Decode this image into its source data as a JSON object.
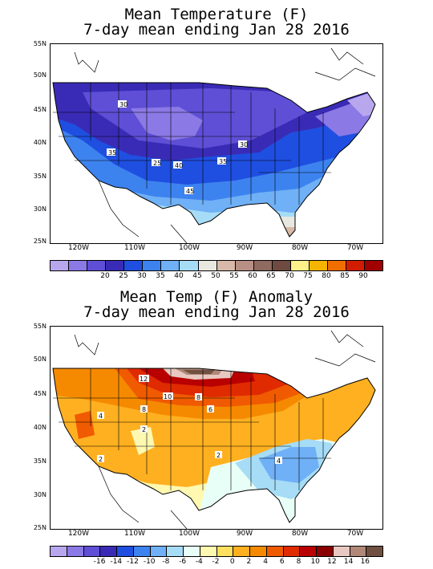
{
  "top": {
    "title_line1": "Mean Temperature (F)",
    "title_line2": "7-day mean ending Jan 28 2016",
    "lat_labels": [
      "55N",
      "50N",
      "45N",
      "40N",
      "35N",
      "30N",
      "25N"
    ],
    "lon_labels": [
      "120W",
      "110W",
      "100W",
      "90W",
      "80W",
      "70W"
    ],
    "contour_labels": [
      "30",
      "35",
      "25",
      "40",
      "30",
      "35",
      "45"
    ],
    "colorbar": {
      "colors": [
        "#b9a7ee",
        "#8b79e6",
        "#5f4fd6",
        "#3a2bb6",
        "#1f4fe0",
        "#3d83ef",
        "#6fb0f6",
        "#a6dcf6",
        "#e8e8e0",
        "#d8b8a8",
        "#b88f85",
        "#8e6a60",
        "#6e4a40",
        "#fff08a",
        "#f5b400",
        "#f06e00",
        "#d21c00",
        "#a00000"
      ],
      "labels": [
        "20",
        "25",
        "30",
        "35",
        "40",
        "45",
        "50",
        "55",
        "60",
        "65",
        "70",
        "75",
        "80",
        "85",
        "90"
      ]
    }
  },
  "bottom": {
    "title_line1": "Mean Temp (F) Anomaly",
    "title_line2": "7-day mean ending Jan 28 2016",
    "lat_labels": [
      "55N",
      "50N",
      "45N",
      "40N",
      "35N",
      "30N",
      "25N"
    ],
    "lon_labels": [
      "120W",
      "110W",
      "100W",
      "90W",
      "80W",
      "70W"
    ],
    "contour_labels": [
      "12",
      "10",
      "8",
      "6",
      "8",
      "4",
      "2",
      "2",
      "2",
      "4"
    ],
    "colorbar": {
      "colors": [
        "#b9a7ee",
        "#8b79e6",
        "#5f4fd6",
        "#3a2bb6",
        "#1f4fe0",
        "#3d83ef",
        "#6fb0f6",
        "#a6dcf6",
        "#e8fff8",
        "#fff8b0",
        "#ffe060",
        "#ffb020",
        "#f58a00",
        "#f05a00",
        "#e02a00",
        "#b80000",
        "#8a0000",
        "#e8c8c0",
        "#b08878",
        "#705040"
      ],
      "labels": [
        "-16",
        "-14",
        "-12",
        "-10",
        "-8",
        "-6",
        "-4",
        "-2",
        "0",
        "2",
        "4",
        "6",
        "8",
        "10",
        "12",
        "14",
        "16"
      ]
    }
  }
}
